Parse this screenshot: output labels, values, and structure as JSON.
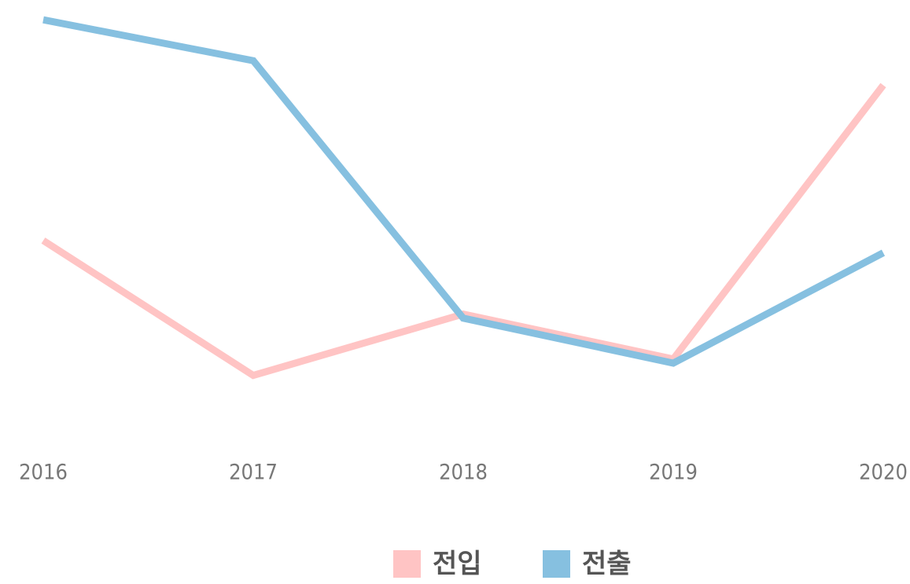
{
  "chart_data": {
    "type": "line",
    "categories": [
      "2016",
      "2017",
      "2018",
      "2019",
      "2020"
    ],
    "series": [
      {
        "name": "전입",
        "color": "#ffc4c4",
        "values": [
          45,
          12,
          27,
          16,
          83
        ]
      },
      {
        "name": "전출",
        "color": "#86c0e0",
        "values": [
          99,
          89,
          26,
          15,
          42
        ]
      }
    ],
    "ylim": [
      0,
      100
    ],
    "legend": "bottom"
  }
}
